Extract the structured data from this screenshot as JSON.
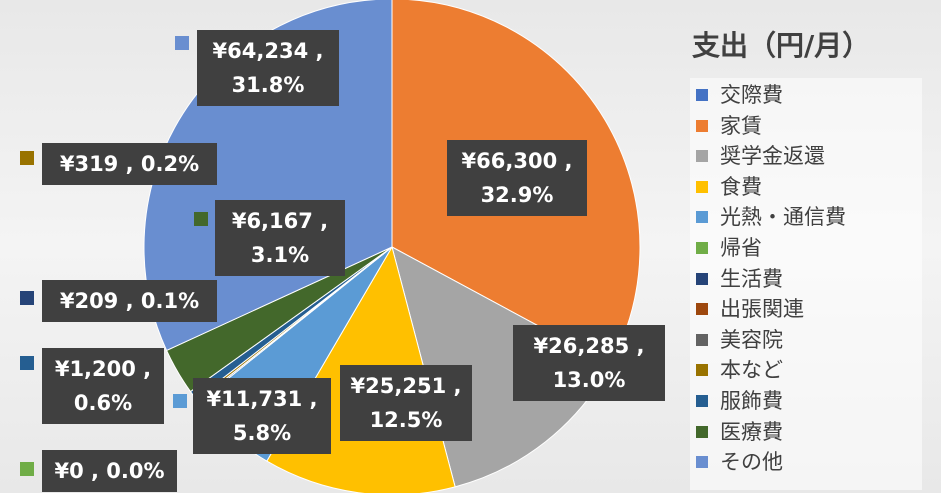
{
  "chart_data": {
    "type": "pie",
    "title": "支出（円/月）",
    "categories": [
      "交際費",
      "家賃",
      "奨学金返還",
      "食費",
      "光熱・通信費",
      "帰省",
      "生活費",
      "出張関連",
      "美容院",
      "本など",
      "服飾費",
      "医療費",
      "その他"
    ],
    "values": [
      0,
      66300,
      26285,
      25251,
      11731,
      0,
      209,
      0,
      0,
      319,
      1200,
      6167,
      64234
    ],
    "value_labels": [
      null,
      "¥66,300 , 32.9%",
      "¥26,285 , 13.0%",
      "¥25,251 , 12.5%",
      "¥11,731 , 5.8%",
      "¥0 , 0.0%",
      "¥209 , 0.1%",
      null,
      null,
      "¥319 , 0.2%",
      "¥1,200 , 0.6%",
      "¥6,167 , 3.1%",
      "¥64,234 , 31.8%"
    ],
    "colors": [
      "#4472c4",
      "#ed7d31",
      "#a5a5a5",
      "#ffc000",
      "#5b9bd5",
      "#70ad47",
      "#264478",
      "#9e480e",
      "#636363",
      "#997300",
      "#255e91",
      "#43682b",
      "#698ed0"
    ],
    "legend": "right"
  }
}
